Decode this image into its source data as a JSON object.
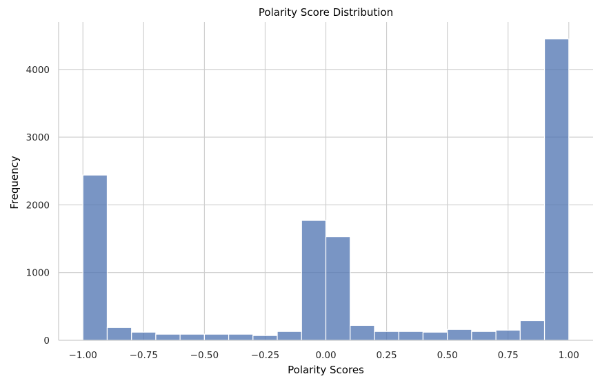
{
  "chart_data": {
    "type": "bar",
    "title": "Polarity Score Distribution",
    "xlabel": "Polarity Scores",
    "ylabel": "Frequency",
    "xlim": [
      -1.1,
      1.1
    ],
    "ylim": [
      0,
      4700
    ],
    "xticks": [
      -1.0,
      -0.75,
      -0.5,
      -0.25,
      0.0,
      0.25,
      0.5,
      0.75,
      1.0
    ],
    "xtick_labels": [
      "−1.00",
      "−0.75",
      "−0.50",
      "−0.25",
      "0.00",
      "0.25",
      "0.50",
      "0.75",
      "1.00"
    ],
    "yticks": [
      0,
      1000,
      2000,
      3000,
      4000
    ],
    "ytick_labels": [
      "0",
      "1000",
      "2000",
      "3000",
      "4000"
    ],
    "grid": true,
    "bin_edges": [
      -1.0,
      -0.9,
      -0.8,
      -0.7,
      -0.6,
      -0.5,
      -0.4,
      -0.3,
      -0.2,
      -0.1,
      0.0,
      0.1,
      0.2,
      0.3,
      0.4,
      0.5,
      0.6,
      0.7,
      0.8,
      0.9,
      1.0
    ],
    "values": [
      2440,
      190,
      120,
      90,
      90,
      90,
      90,
      70,
      130,
      1770,
      1530,
      220,
      130,
      130,
      120,
      160,
      130,
      150,
      290,
      4450
    ],
    "bar_color": "#4c72b0"
  }
}
